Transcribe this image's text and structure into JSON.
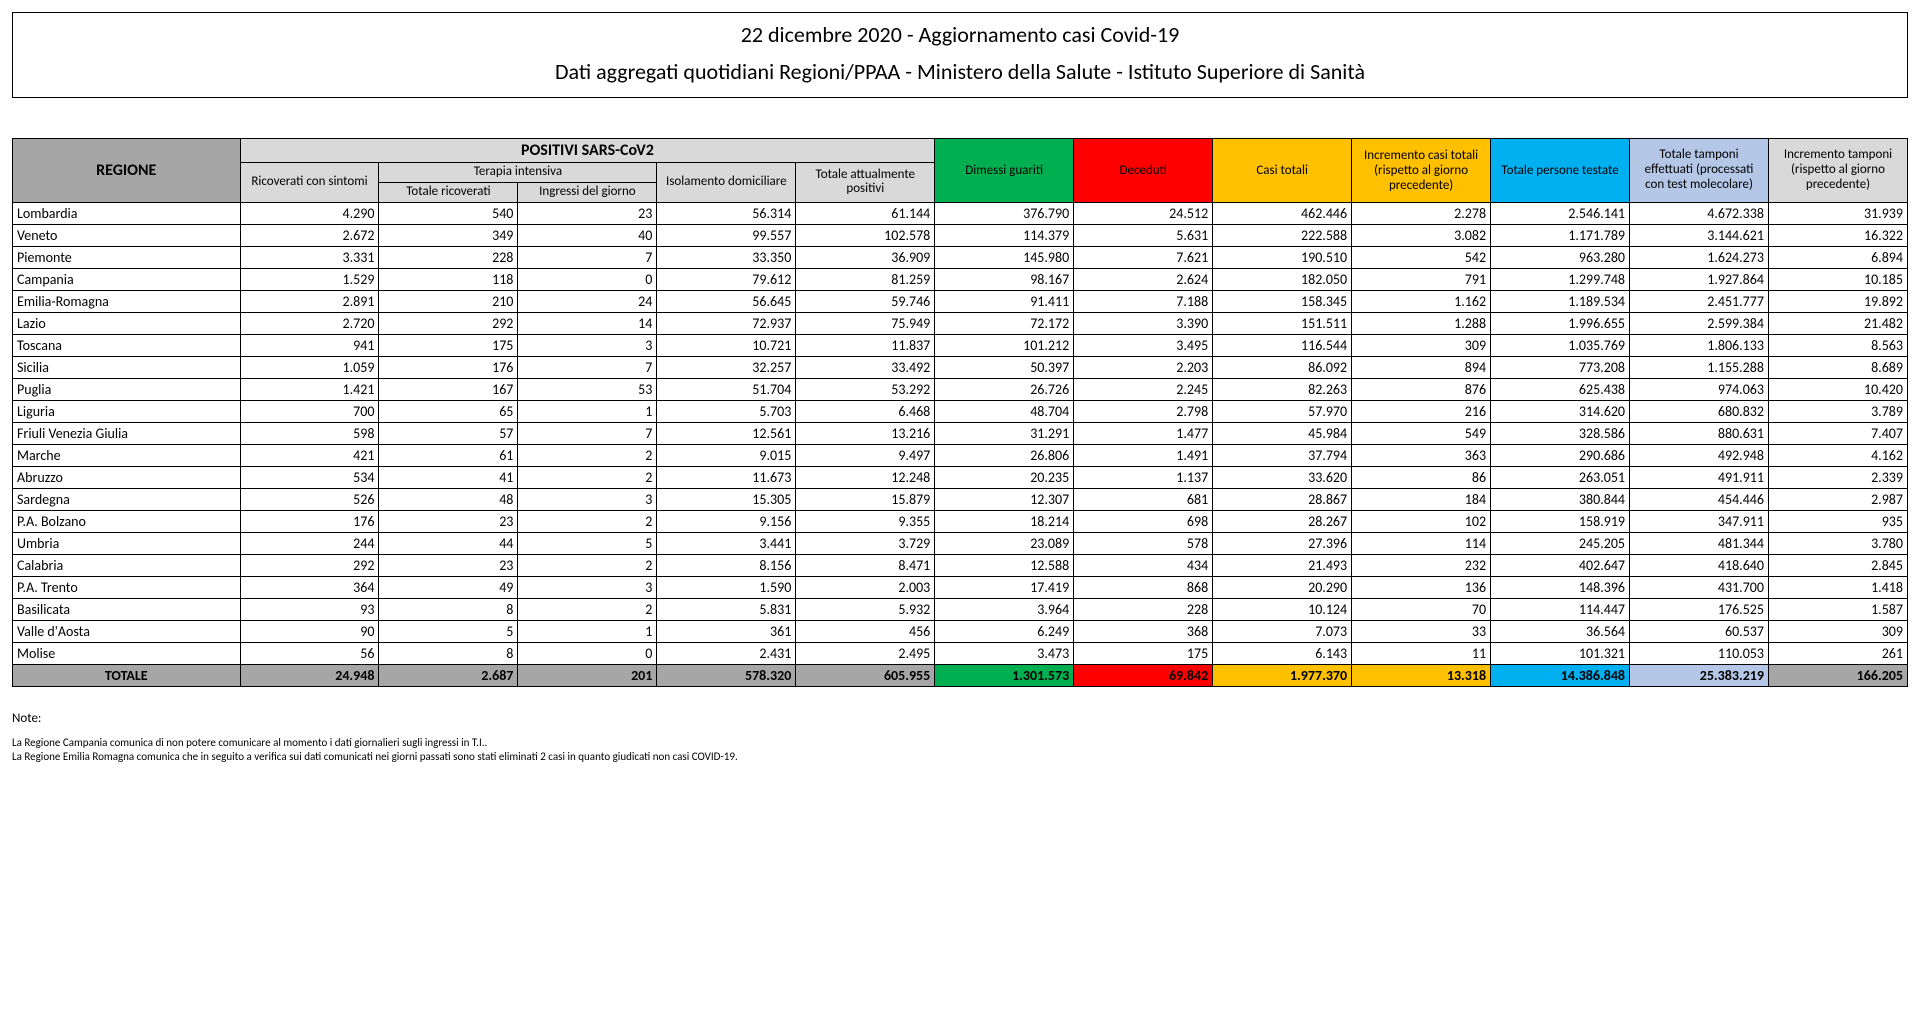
{
  "header": {
    "title1": "22 dicembre 2020 - Aggiornamento casi Covid-19",
    "title2": "Dati aggregati quotidiani Regioni/PPAA - Ministero della Salute - Istituto Superiore di Sanità"
  },
  "columns": {
    "regione": "REGIONE",
    "positivi": "POSITIVI SARS-CoV2",
    "ricoverati": "Ricoverati con sintomi",
    "terapia": "Terapia intensiva",
    "terapia_tot": "Totale ricoverati",
    "terapia_ing": "Ingressi del giorno",
    "isolamento": "Isolamento domiciliare",
    "tot_pos": "Totale attualmente positivi",
    "dimessi": "Dimessi guariti",
    "deceduti": "Deceduti",
    "casi_totali": "Casi totali",
    "incremento": "Incremento casi totali (rispetto al giorno precedente)",
    "persone_testate": "Totale persone testate",
    "tamponi": "Totale tamponi effettuati (processati con test molecolare)",
    "incr_tamponi": "Incremento tamponi (rispetto al giorno precedente)"
  },
  "rows": [
    {
      "name": "Lombardia",
      "v": [
        "4.290",
        "540",
        "23",
        "56.314",
        "61.144",
        "376.790",
        "24.512",
        "462.446",
        "2.278",
        "2.546.141",
        "4.672.338",
        "31.939"
      ]
    },
    {
      "name": "Veneto",
      "v": [
        "2.672",
        "349",
        "40",
        "99.557",
        "102.578",
        "114.379",
        "5.631",
        "222.588",
        "3.082",
        "1.171.789",
        "3.144.621",
        "16.322"
      ]
    },
    {
      "name": "Piemonte",
      "v": [
        "3.331",
        "228",
        "7",
        "33.350",
        "36.909",
        "145.980",
        "7.621",
        "190.510",
        "542",
        "963.280",
        "1.624.273",
        "6.894"
      ]
    },
    {
      "name": "Campania",
      "v": [
        "1.529",
        "118",
        "0",
        "79.612",
        "81.259",
        "98.167",
        "2.624",
        "182.050",
        "791",
        "1.299.748",
        "1.927.864",
        "10.185"
      ]
    },
    {
      "name": "Emilia-Romagna",
      "v": [
        "2.891",
        "210",
        "24",
        "56.645",
        "59.746",
        "91.411",
        "7.188",
        "158.345",
        "1.162",
        "1.189.534",
        "2.451.777",
        "19.892"
      ]
    },
    {
      "name": "Lazio",
      "v": [
        "2.720",
        "292",
        "14",
        "72.937",
        "75.949",
        "72.172",
        "3.390",
        "151.511",
        "1.288",
        "1.996.655",
        "2.599.384",
        "21.482"
      ]
    },
    {
      "name": "Toscana",
      "v": [
        "941",
        "175",
        "3",
        "10.721",
        "11.837",
        "101.212",
        "3.495",
        "116.544",
        "309",
        "1.035.769",
        "1.806.133",
        "8.563"
      ]
    },
    {
      "name": "Sicilia",
      "v": [
        "1.059",
        "176",
        "7",
        "32.257",
        "33.492",
        "50.397",
        "2.203",
        "86.092",
        "894",
        "773.208",
        "1.155.288",
        "8.689"
      ]
    },
    {
      "name": "Puglia",
      "v": [
        "1.421",
        "167",
        "53",
        "51.704",
        "53.292",
        "26.726",
        "2.245",
        "82.263",
        "876",
        "625.438",
        "974.063",
        "10.420"
      ]
    },
    {
      "name": "Liguria",
      "v": [
        "700",
        "65",
        "1",
        "5.703",
        "6.468",
        "48.704",
        "2.798",
        "57.970",
        "216",
        "314.620",
        "680.832",
        "3.789"
      ]
    },
    {
      "name": "Friuli Venezia Giulia",
      "v": [
        "598",
        "57",
        "7",
        "12.561",
        "13.216",
        "31.291",
        "1.477",
        "45.984",
        "549",
        "328.586",
        "880.631",
        "7.407"
      ]
    },
    {
      "name": "Marche",
      "v": [
        "421",
        "61",
        "2",
        "9.015",
        "9.497",
        "26.806",
        "1.491",
        "37.794",
        "363",
        "290.686",
        "492.948",
        "4.162"
      ]
    },
    {
      "name": "Abruzzo",
      "v": [
        "534",
        "41",
        "2",
        "11.673",
        "12.248",
        "20.235",
        "1.137",
        "33.620",
        "86",
        "263.051",
        "491.911",
        "2.339"
      ]
    },
    {
      "name": "Sardegna",
      "v": [
        "526",
        "48",
        "3",
        "15.305",
        "15.879",
        "12.307",
        "681",
        "28.867",
        "184",
        "380.844",
        "454.446",
        "2.987"
      ]
    },
    {
      "name": "P.A. Bolzano",
      "v": [
        "176",
        "23",
        "2",
        "9.156",
        "9.355",
        "18.214",
        "698",
        "28.267",
        "102",
        "158.919",
        "347.911",
        "935"
      ]
    },
    {
      "name": "Umbria",
      "v": [
        "244",
        "44",
        "5",
        "3.441",
        "3.729",
        "23.089",
        "578",
        "27.396",
        "114",
        "245.205",
        "481.344",
        "3.780"
      ]
    },
    {
      "name": "Calabria",
      "v": [
        "292",
        "23",
        "2",
        "8.156",
        "8.471",
        "12.588",
        "434",
        "21.493",
        "232",
        "402.647",
        "418.640",
        "2.845"
      ]
    },
    {
      "name": "P.A. Trento",
      "v": [
        "364",
        "49",
        "3",
        "1.590",
        "2.003",
        "17.419",
        "868",
        "20.290",
        "136",
        "148.396",
        "431.700",
        "1.418"
      ]
    },
    {
      "name": "Basilicata",
      "v": [
        "93",
        "8",
        "2",
        "5.831",
        "5.932",
        "3.964",
        "228",
        "10.124",
        "70",
        "114.447",
        "176.525",
        "1.587"
      ]
    },
    {
      "name": "Valle d'Aosta",
      "v": [
        "90",
        "5",
        "1",
        "361",
        "456",
        "6.249",
        "368",
        "7.073",
        "33",
        "36.564",
        "60.537",
        "309"
      ]
    },
    {
      "name": "Molise",
      "v": [
        "56",
        "8",
        "0",
        "2.431",
        "2.495",
        "3.473",
        "175",
        "6.143",
        "11",
        "101.321",
        "110.053",
        "261"
      ]
    }
  ],
  "total": {
    "name": "TOTALE",
    "v": [
      "24.948",
      "2.687",
      "201",
      "578.320",
      "605.955",
      "1.301.573",
      "69.842",
      "1.977.370",
      "13.318",
      "14.386.848",
      "25.383.219",
      "166.205"
    ]
  },
  "notes": {
    "title": "Note:",
    "lines": [
      "La Regione Campania comunica di non potere comunicare al momento i dati giornalieri sugli ingressi in T.I..",
      "La Regione Emilia Romagna comunica che in seguito a verifica sui dati comunicati nei giorni passati sono stati eliminati 2 casi in quanto giudicati non casi COVID-19."
    ]
  },
  "style": {
    "colors": {
      "header_dark": "#a6a6a6",
      "header_light": "#d9d9d9",
      "green": "#00b050",
      "red": "#ff0000",
      "orange": "#ffc000",
      "blue": "#00b0f0",
      "lightblue": "#b4c7e7",
      "background": "#ffffff",
      "border": "#000000"
    },
    "col_widths_pct": [
      12,
      7.3,
      7.3,
      7.3,
      7.3,
      7.3,
      7.3,
      7.3,
      7.3,
      7.3,
      7.3,
      7.3,
      7.3
    ]
  }
}
